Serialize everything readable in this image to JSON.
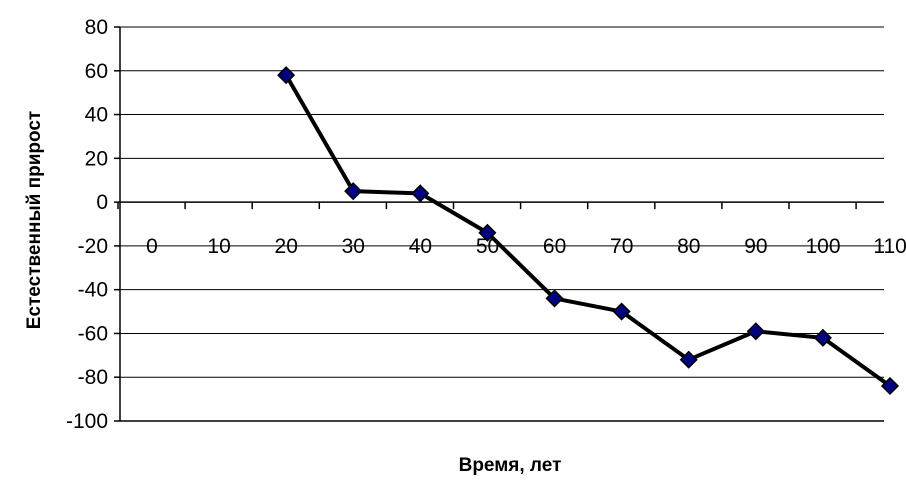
{
  "chart_data": {
    "type": "line",
    "title": "",
    "xlabel": "Время, лет",
    "ylabel": "Естественный прирост",
    "xlim": [
      0,
      110
    ],
    "ylim": [
      -100,
      80
    ],
    "x_ticks": [
      0,
      10,
      20,
      30,
      40,
      50,
      60,
      70,
      80,
      90,
      100,
      110
    ],
    "y_ticks": [
      80,
      60,
      40,
      20,
      0,
      -20,
      -40,
      -60,
      -80,
      -100
    ],
    "grid": "horizontal",
    "legend": "none",
    "series": [
      {
        "x": [
          10,
          20,
          30,
          40,
          50,
          60,
          70,
          80,
          90,
          100
        ],
        "values": [
          58,
          5,
          4,
          -14,
          -44,
          -50,
          -72,
          -59,
          -62,
          -84
        ],
        "line_color": "#000000",
        "marker": "diamond",
        "marker_color": "#000080"
      }
    ]
  }
}
